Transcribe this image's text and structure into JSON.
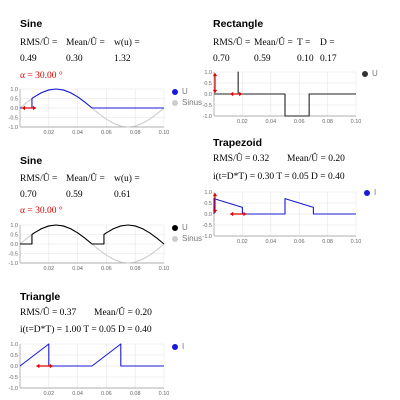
{
  "colors": {
    "signal": "#1a1ad8",
    "sinus": "#cccccc",
    "black": "#000000",
    "marker": "#e00000",
    "grid": "#e6e6e6",
    "axis": "#999999"
  },
  "panels": {
    "sine1": {
      "title": "Sine",
      "labels": [
        "RMS/Û =",
        "Mean/Û =",
        "w(u) ="
      ],
      "values": [
        "0.49",
        "0.30",
        "1.32"
      ],
      "alpha": "α = 30.00 °",
      "legend": [
        "U",
        "Sinus"
      ],
      "legend_colors": [
        "#1a1ad8",
        "#cccccc"
      ]
    },
    "sine2": {
      "title": "Sine",
      "labels": [
        "RMS/Û =",
        "Mean/Û =",
        "w(u) ="
      ],
      "values": [
        "0.70",
        "0.59",
        "0.61"
      ],
      "alpha": "α = 30.00 °",
      "legend": [
        "U",
        "Sinus"
      ],
      "legend_colors": [
        "#000000",
        "#cccccc"
      ]
    },
    "triangle": {
      "title": "Triangle",
      "line1": [
        "RMS/Û = 0.37",
        "Mean/Û = 0.20"
      ],
      "line2": "i(t=D*T) = 1.00 T = 0.05 D = 0.40",
      "legend": [
        "I"
      ],
      "legend_colors": [
        "#1a1ad8"
      ]
    },
    "rectangle": {
      "title": "Rectangle",
      "labels": [
        "RMS/Û =",
        "Mean/Û =",
        "T =",
        "D ="
      ],
      "values": [
        "0.70",
        "0.59",
        "0.10",
        "0.17"
      ],
      "legend": [
        "U"
      ],
      "legend_colors": [
        "#333333"
      ]
    },
    "trapezoid": {
      "title": "Trapezoid",
      "line1": [
        "RMS/Û = 0.32",
        "Mean/Û = 0.20"
      ],
      "line2": "i(t=D*T) = 0.30 T = 0.05 D = 0.40",
      "legend": [
        "I"
      ],
      "legend_colors": [
        "#1a1ad8"
      ]
    }
  },
  "chart_data": [
    {
      "id": "sine1",
      "type": "line",
      "xlim": [
        0,
        0.1
      ],
      "ylim": [
        -1.0,
        1.0
      ],
      "xticks": [
        "0.02",
        "0.04",
        "0.06",
        "0.08",
        "0.10"
      ],
      "yticks": [
        "1.0",
        "0.5",
        "0.0",
        "-0.5",
        "-1.0"
      ],
      "series": [
        {
          "name": "Sinus",
          "color": "#cccccc",
          "x": [
            0,
            0.005,
            0.01,
            0.015,
            0.02,
            0.025,
            0.03,
            0.035,
            0.04,
            0.045,
            0.05,
            0.055,
            0.06,
            0.065,
            0.07,
            0.075,
            0.08,
            0.085,
            0.09,
            0.095,
            0.1
          ],
          "y": [
            0,
            0.31,
            0.59,
            0.81,
            0.95,
            1.0,
            0.95,
            0.81,
            0.59,
            0.31,
            0,
            -0.31,
            -0.59,
            -0.81,
            -0.95,
            -1.0,
            -0.95,
            -0.81,
            -0.59,
            -0.31,
            0
          ]
        },
        {
          "name": "U",
          "color": "#1a1ad8",
          "x": [
            0,
            0.0083,
            0.0083,
            0.01,
            0.015,
            0.02,
            0.025,
            0.03,
            0.035,
            0.04,
            0.045,
            0.05,
            0.06,
            0.08,
            0.1
          ],
          "y": [
            0,
            0,
            0.5,
            0.59,
            0.81,
            0.95,
            1.0,
            0.95,
            0.81,
            0.59,
            0.31,
            0,
            0,
            0,
            0
          ]
        }
      ],
      "marker_x": [
        0.0,
        0.0083
      ]
    },
    {
      "id": "sine2",
      "type": "line",
      "xlim": [
        0,
        0.1
      ],
      "ylim": [
        -1.0,
        1.0
      ],
      "xticks": [
        "0.02",
        "0.04",
        "0.06",
        "0.08",
        "0.10"
      ],
      "yticks": [
        "1.0",
        "0.5",
        "0.0",
        "-0.5",
        "-1.0"
      ],
      "series": [
        {
          "name": "Sinus",
          "color": "#cccccc",
          "x": [
            0,
            0.005,
            0.01,
            0.015,
            0.02,
            0.025,
            0.03,
            0.035,
            0.04,
            0.045,
            0.05,
            0.055,
            0.06,
            0.065,
            0.07,
            0.075,
            0.08,
            0.085,
            0.09,
            0.095,
            0.1
          ],
          "y": [
            0,
            0.31,
            0.59,
            0.81,
            0.95,
            1.0,
            0.95,
            0.81,
            0.59,
            0.31,
            0,
            -0.31,
            -0.59,
            -0.81,
            -0.95,
            -1.0,
            -0.95,
            -0.81,
            -0.59,
            -0.31,
            0
          ]
        },
        {
          "name": "U",
          "color": "#000000",
          "x": [
            0,
            0.0083,
            0.0083,
            0.01,
            0.015,
            0.02,
            0.025,
            0.03,
            0.035,
            0.04,
            0.045,
            0.05,
            0.05,
            0.0583,
            0.0583,
            0.06,
            0.065,
            0.07,
            0.075,
            0.08,
            0.085,
            0.09,
            0.095,
            0.1
          ],
          "y": [
            0,
            0,
            0.5,
            0.59,
            0.81,
            0.95,
            1.0,
            0.95,
            0.81,
            0.59,
            0.31,
            0,
            0,
            0,
            0.5,
            0.59,
            0.81,
            0.95,
            1.0,
            0.95,
            0.81,
            0.59,
            0.31,
            0
          ]
        }
      ]
    },
    {
      "id": "triangle",
      "type": "line",
      "xlim": [
        0,
        0.1
      ],
      "ylim": [
        -1.0,
        1.0
      ],
      "xticks": [
        "0.02",
        "0.04",
        "0.06",
        "0.08",
        "0.10"
      ],
      "yticks": [
        "1.0",
        "0.5",
        "0.0",
        "-0.5",
        "-1.0"
      ],
      "series": [
        {
          "name": "I",
          "color": "#1a1ad8",
          "x": [
            0,
            0.02,
            0.02,
            0.05,
            0.07,
            0.07,
            0.1
          ],
          "y": [
            0,
            1.0,
            0,
            0,
            1.0,
            0,
            0
          ]
        }
      ],
      "marker_x": [
        0.01,
        0.02
      ]
    },
    {
      "id": "rectangle",
      "type": "line",
      "xlim": [
        0,
        0.1
      ],
      "ylim": [
        -1.0,
        1.0
      ],
      "xticks": [
        "0.02",
        "0.04",
        "0.06",
        "0.08",
        "0.10"
      ],
      "yticks": [
        "1.0",
        "0.5",
        "0.0",
        "-0.5",
        "-1.0"
      ],
      "series": [
        {
          "name": "U",
          "color": "#222222",
          "x": [
            0,
            0.017,
            0.017,
            0.017,
            0.05,
            0.05,
            0.067,
            0.067,
            0.1
          ],
          "y": [
            0,
            0,
            1.0,
            0,
            0,
            -1.0,
            -1.0,
            0,
            0
          ]
        }
      ],
      "marker_x": [
        0.01,
        0.017
      ],
      "vmarker_x": 0.0
    },
    {
      "id": "trapezoid",
      "type": "line",
      "xlim": [
        0,
        0.1
      ],
      "ylim": [
        -1.0,
        1.0
      ],
      "xticks": [
        "0.02",
        "0.04",
        "0.06",
        "0.08",
        "0.10"
      ],
      "yticks": [
        "1.0",
        "0.5",
        "0.0",
        "-0.5",
        "-1.0"
      ],
      "series": [
        {
          "name": "I",
          "color": "#1a1ad8",
          "x": [
            0,
            0,
            0.02,
            0.02,
            0.05,
            0.05,
            0.07,
            0.07,
            0.1
          ],
          "y": [
            0,
            0.7,
            0.3,
            0,
            0,
            0.7,
            0.3,
            0,
            0
          ]
        }
      ],
      "marker_x": [
        0.01,
        0.02
      ],
      "vmarker_x": 0.0
    }
  ]
}
